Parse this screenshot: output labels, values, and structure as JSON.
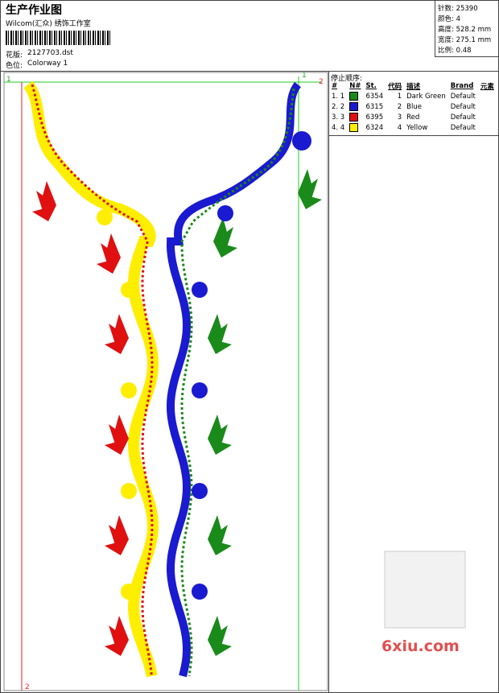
{
  "header": {
    "title": "生产作业图",
    "subtitle": "Wilcom(汇众) 绣饰工作室",
    "design_label": "花版:",
    "design_value": "2127703.dst",
    "colorway_label": "色位:",
    "colorway_value": "Colorway 1"
  },
  "stats": [
    {
      "label": "针数:",
      "value": "25390"
    },
    {
      "label": "颜色:",
      "value": "4"
    },
    {
      "label": "高度:",
      "value": "528.2 mm"
    },
    {
      "label": "宽度:",
      "value": "275.1 mm"
    },
    {
      "label": "比例:",
      "value": "0.48"
    }
  ],
  "stop_sequence": {
    "title": "停止顺序:",
    "columns": [
      "#",
      "N#",
      "St.",
      "代码",
      "描述",
      "Brand",
      "元素"
    ],
    "rows": [
      {
        "index": "1. 1",
        "color": "#1a8a1a",
        "st": "6354",
        "code": "1",
        "description": "Dark Green",
        "brand": "Default"
      },
      {
        "index": "2. 2",
        "color": "#1a1ad0",
        "st": "6315",
        "code": "2",
        "description": "Blue",
        "brand": "Default"
      },
      {
        "index": "3. 3",
        "color": "#e01010",
        "st": "6395",
        "code": "3",
        "description": "Red",
        "brand": "Default"
      },
      {
        "index": "4. 4",
        "color": "#ffee00",
        "st": "6324",
        "code": "4",
        "description": "Yellow",
        "brand": "Default"
      }
    ]
  },
  "markers": {
    "top_left": "1",
    "top_right_green": "1",
    "top_right_red": "2",
    "bottom_left": "2"
  },
  "watermark": "6xiu.com"
}
